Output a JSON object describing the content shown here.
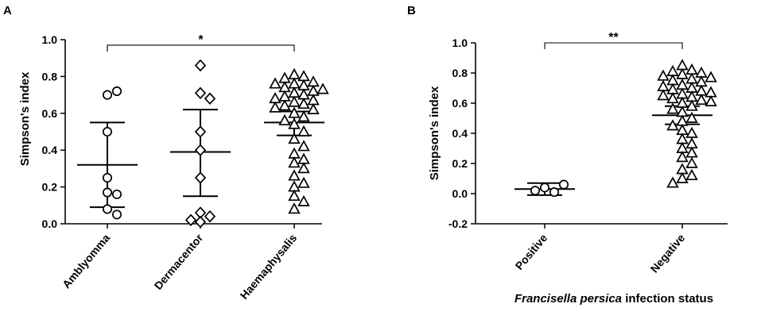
{
  "chart_data": [
    {
      "panel": "A",
      "type": "scatter",
      "title": "",
      "ylabel": "Simpson's index",
      "xlabel": "",
      "ylim": [
        0,
        1.0
      ],
      "yticks": [
        "0.0",
        "0.2",
        "0.4",
        "0.6",
        "0.8",
        "1.0"
      ],
      "categories": [
        "Amblyomma",
        "Dermacentor",
        "Haemaphysalis"
      ],
      "series": [
        {
          "category": "Amblyomma",
          "marker": "circle",
          "values": [
            0.7,
            0.72,
            0.5,
            0.25,
            0.17,
            0.16,
            0.08,
            0.05
          ],
          "mean": 0.32,
          "lower": 0.09,
          "upper": 0.55
        },
        {
          "category": "Dermacentor",
          "marker": "diamond",
          "values": [
            0.86,
            0.71,
            0.68,
            0.5,
            0.4,
            0.25,
            0.06,
            0.04,
            0.02,
            0.01
          ],
          "mean": 0.39,
          "lower": 0.15,
          "upper": 0.62
        },
        {
          "category": "Haemaphysalis",
          "marker": "triangle",
          "values": [
            0.81,
            0.8,
            0.79,
            0.77,
            0.76,
            0.76,
            0.75,
            0.74,
            0.73,
            0.72,
            0.71,
            0.7,
            0.69,
            0.68,
            0.67,
            0.66,
            0.65,
            0.64,
            0.63,
            0.62,
            0.6,
            0.58,
            0.56,
            0.54,
            0.5,
            0.46,
            0.42,
            0.38,
            0.35,
            0.33,
            0.3,
            0.26,
            0.22,
            0.2,
            0.15,
            0.12,
            0.08
          ],
          "mean": 0.55,
          "lower": 0.48,
          "upper": 0.61
        }
      ],
      "significance": {
        "from": "Amblyomma",
        "to": "Haemaphysalis",
        "label": "*",
        "y": 0.97
      }
    },
    {
      "panel": "B",
      "type": "scatter",
      "title": "",
      "ylabel": "Simpson's index",
      "xlabel_italic": "Francisella persica",
      "xlabel_rest": " infection status",
      "ylim": [
        -0.2,
        1.0
      ],
      "yticks": [
        "-0.2",
        "0.0",
        "0.2",
        "0.4",
        "0.6",
        "0.8",
        "1.0"
      ],
      "categories": [
        "Positive",
        "Negative"
      ],
      "series": [
        {
          "category": "Positive",
          "marker": "circle",
          "values": [
            0.04,
            0.01,
            0.02,
            0.06
          ],
          "mean": 0.03,
          "lower": -0.01,
          "upper": 0.07
        },
        {
          "category": "Negative",
          "marker": "triangle",
          "values": [
            0.85,
            0.82,
            0.81,
            0.8,
            0.79,
            0.78,
            0.77,
            0.76,
            0.75,
            0.74,
            0.72,
            0.71,
            0.7,
            0.69,
            0.68,
            0.67,
            0.66,
            0.65,
            0.64,
            0.63,
            0.62,
            0.61,
            0.6,
            0.58,
            0.56,
            0.54,
            0.5,
            0.48,
            0.45,
            0.42,
            0.4,
            0.36,
            0.33,
            0.3,
            0.27,
            0.24,
            0.2,
            0.16,
            0.12,
            0.1,
            0.07
          ],
          "mean": 0.52,
          "lower": 0.46,
          "upper": 0.58
        }
      ],
      "significance": {
        "from": "Positive",
        "to": "Negative",
        "label": "**",
        "y": 1.0
      }
    }
  ]
}
